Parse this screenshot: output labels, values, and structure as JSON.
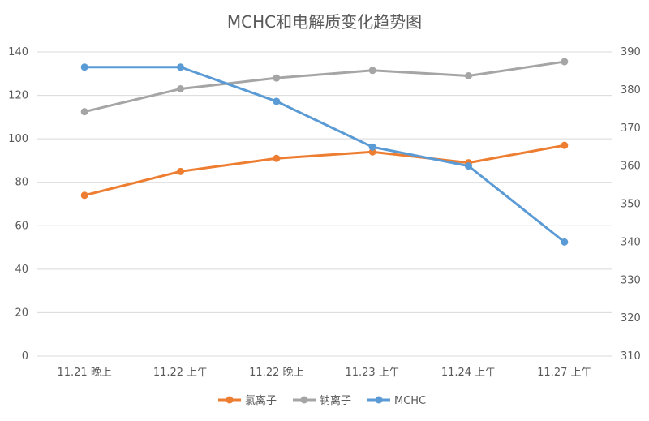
{
  "chart_data": {
    "type": "line",
    "title": "MCHC和电解质变化趋势图",
    "categories": [
      "11.21 晚上",
      "11.22 上午",
      "11.22 晚上",
      "11.23 上午",
      "11.24 上午",
      "11.27 上午"
    ],
    "y_left": {
      "min": 0,
      "max": 140,
      "ticks": [
        0,
        20,
        40,
        60,
        80,
        100,
        120,
        140
      ]
    },
    "y_right": {
      "min": 310,
      "max": 390,
      "ticks": [
        310,
        320,
        330,
        340,
        350,
        360,
        370,
        380,
        390
      ]
    },
    "grid": true,
    "legend_position": "bottom",
    "series": [
      {
        "name": "氯离子",
        "axis": "left",
        "color": "#ed7d31",
        "values": [
          74,
          85,
          91,
          94,
          89,
          97
        ]
      },
      {
        "name": "钠离子",
        "axis": "left",
        "color": "#a5a5a5",
        "values": [
          112.5,
          123,
          128,
          131.5,
          129,
          135.5
        ]
      },
      {
        "name": "MCHC",
        "axis": "right",
        "color": "#5b9bd5",
        "values": [
          386,
          386,
          377,
          365,
          360,
          340
        ]
      }
    ]
  }
}
